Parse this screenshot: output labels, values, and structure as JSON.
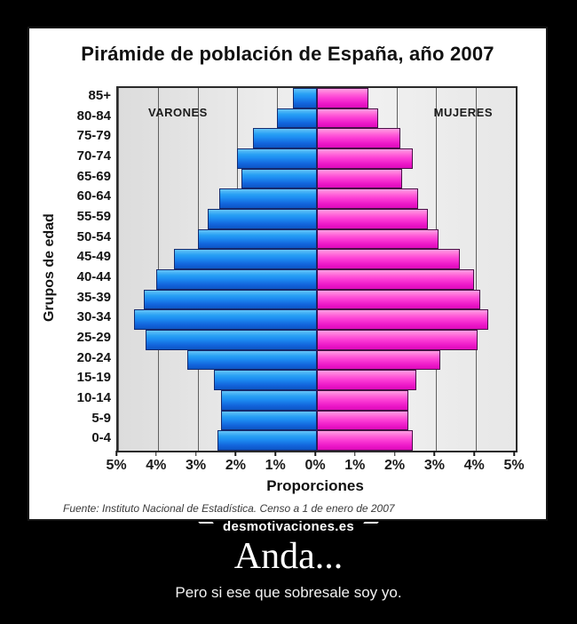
{
  "poster": {
    "watermark": "desmotivaciones.es",
    "caption": "Anda...",
    "subcaption": "Pero si ese que sobresale soy yo."
  },
  "chart_data": {
    "type": "bar",
    "variant": "population-pyramid",
    "title": "Pirámide de población de España, año 2007",
    "ylabel": "Grupos de edad",
    "xlabel": "Proporciones",
    "source": "Fuente: Instituto Nacional de Estadística. Censo a 1 de enero de 2007",
    "grid": true,
    "xlim_each_side": [
      0,
      5
    ],
    "x_ticks": [
      "5%",
      "4%",
      "3%",
      "2%",
      "1%",
      "0%",
      "1%",
      "2%",
      "3%",
      "4%",
      "5%"
    ],
    "categories": [
      "85+",
      "80-84",
      "75-79",
      "70-74",
      "65-69",
      "60-64",
      "55-59",
      "50-54",
      "45-49",
      "40-44",
      "35-39",
      "30-34",
      "25-29",
      "20-24",
      "15-19",
      "10-14",
      "5-9",
      "0-4"
    ],
    "series": [
      {
        "name": "VARONES",
        "side": "left",
        "color": "#1e8ef2",
        "values": [
          0.6,
          1.0,
          1.6,
          2.0,
          1.9,
          2.45,
          2.75,
          3.0,
          3.6,
          4.05,
          4.35,
          4.6,
          4.3,
          3.25,
          2.6,
          2.4,
          2.4,
          2.5
        ]
      },
      {
        "name": "MUJERES",
        "side": "right",
        "color": "#fb3cd4",
        "values": [
          1.3,
          1.55,
          2.1,
          2.4,
          2.15,
          2.55,
          2.8,
          3.05,
          3.6,
          3.95,
          4.1,
          4.3,
          4.05,
          3.1,
          2.5,
          2.3,
          2.3,
          2.4
        ]
      }
    ]
  }
}
